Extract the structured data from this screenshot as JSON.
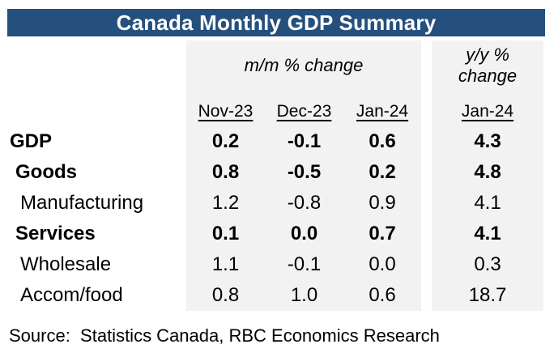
{
  "title": "Canada Monthly GDP Summary",
  "colors": {
    "banner_blue": "#254F7C",
    "panel_gray": "#F2F2F2",
    "title_text": "#FFFFFF",
    "body_text": "#000000"
  },
  "table": {
    "group_headers": {
      "mm": "m/m % change",
      "yy": "y/y % change"
    },
    "column_headers": [
      "Nov-23",
      "Dec-23",
      "Jan-24"
    ],
    "yy_column_header": "Jan-24",
    "rows": [
      {
        "label": "GDP",
        "values": [
          "0.2",
          "-0.1",
          "0.6"
        ],
        "yy": "4.3"
      },
      {
        "label": "Goods",
        "values": [
          "0.8",
          "-0.5",
          "0.2"
        ],
        "yy": "4.8"
      },
      {
        "label": "Manufacturing",
        "values": [
          "1.2",
          "-0.8",
          "0.9"
        ],
        "yy": "4.1"
      },
      {
        "label": "Services",
        "values": [
          "0.1",
          "0.0",
          "0.7"
        ],
        "yy": "4.1"
      },
      {
        "label": "Wholesale",
        "values": [
          "1.1",
          "-0.1",
          "0.0"
        ],
        "yy": "0.3"
      },
      {
        "label": "Accom/food",
        "values": [
          "0.8",
          "1.0",
          "0.6"
        ],
        "yy": "18.7"
      }
    ]
  },
  "source": "Source:  Statistics Canada, RBC Economics Research",
  "chart_data": {
    "type": "table",
    "title": "Canada Monthly GDP Summary",
    "column_groups": [
      {
        "label": "m/m % change",
        "columns": [
          "Nov-23",
          "Dec-23",
          "Jan-24"
        ]
      },
      {
        "label": "y/y % change",
        "columns": [
          "Jan-24"
        ]
      }
    ],
    "rows": [
      {
        "label": "GDP",
        "emphasis": true,
        "mm_pct_change": {
          "Nov-23": 0.2,
          "Dec-23": -0.1,
          "Jan-24": 0.6
        },
        "yy_pct_change_Jan-24": 4.3
      },
      {
        "label": "Goods",
        "emphasis": true,
        "mm_pct_change": {
          "Nov-23": 0.8,
          "Dec-23": -0.5,
          "Jan-24": 0.2
        },
        "yy_pct_change_Jan-24": 4.8
      },
      {
        "label": "Manufacturing",
        "emphasis": false,
        "mm_pct_change": {
          "Nov-23": 1.2,
          "Dec-23": -0.8,
          "Jan-24": 0.9
        },
        "yy_pct_change_Jan-24": 4.1
      },
      {
        "label": "Services",
        "emphasis": true,
        "mm_pct_change": {
          "Nov-23": 0.1,
          "Dec-23": 0.0,
          "Jan-24": 0.7
        },
        "yy_pct_change_Jan-24": 4.1
      },
      {
        "label": "Wholesale",
        "emphasis": false,
        "mm_pct_change": {
          "Nov-23": 1.1,
          "Dec-23": -0.1,
          "Jan-24": 0.0
        },
        "yy_pct_change_Jan-24": 0.3
      },
      {
        "label": "Accom/food",
        "emphasis": false,
        "mm_pct_change": {
          "Nov-23": 0.8,
          "Dec-23": 1.0,
          "Jan-24": 0.6
        },
        "yy_pct_change_Jan-24": 18.7
      }
    ],
    "source_note": "Source: Statistics Canada, RBC Economics Research"
  }
}
